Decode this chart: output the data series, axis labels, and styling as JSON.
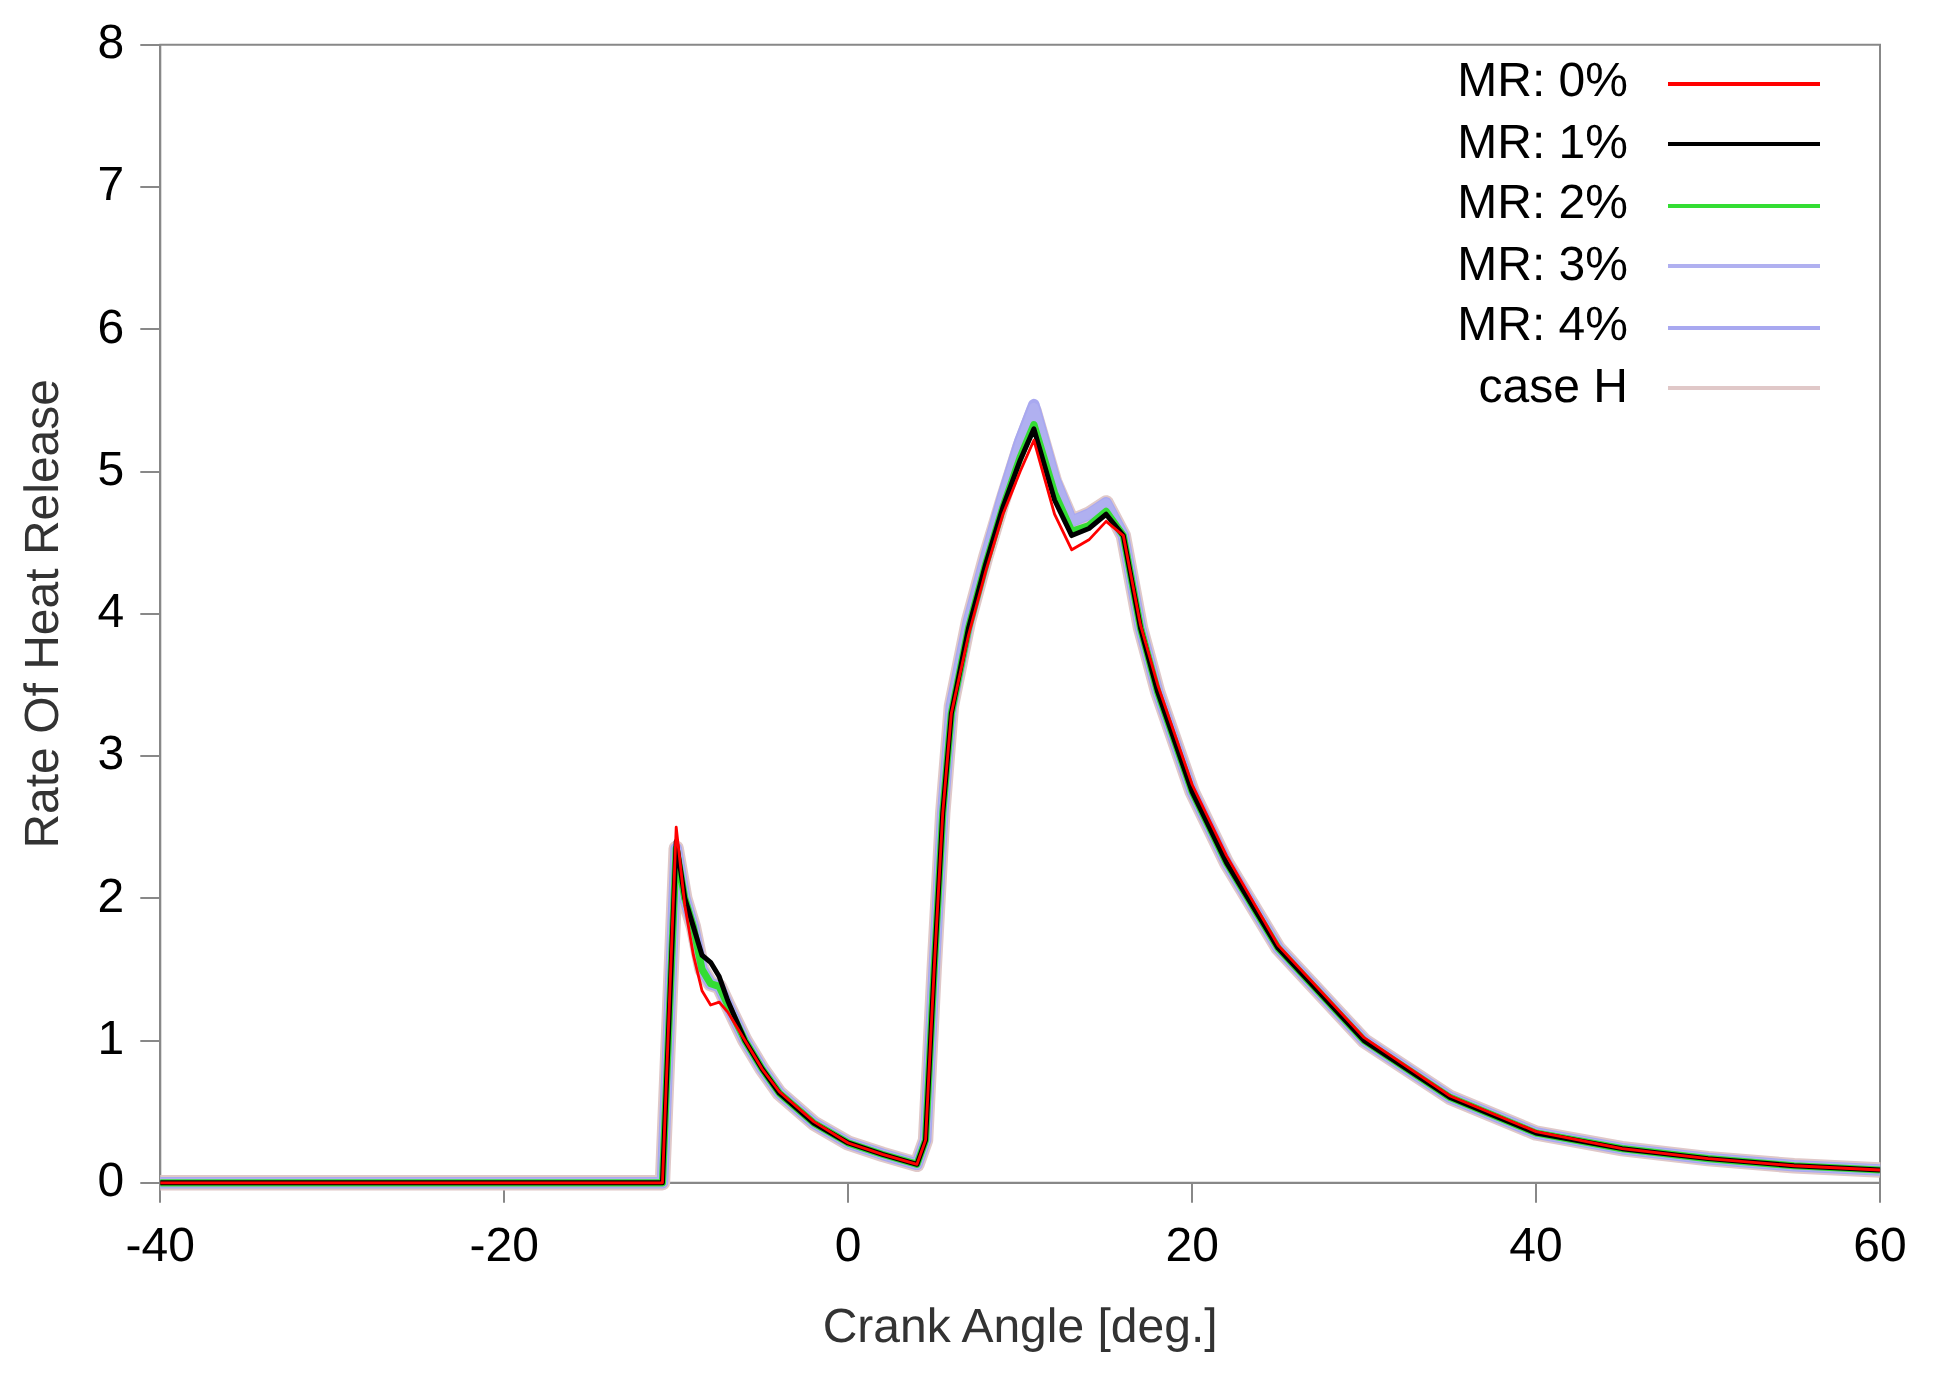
{
  "chart_data": {
    "type": "line",
    "xlabel": "Crank Angle [deg.]",
    "ylabel": "Rate Of Heat Release",
    "x": [
      -40,
      -10.8,
      -10,
      -9.5,
      -9,
      -8.5,
      -8,
      -7.5,
      -7,
      -6,
      -5,
      -4,
      -2,
      0,
      2,
      4,
      4.5,
      5,
      5.5,
      6,
      7,
      8,
      9,
      10,
      10.8,
      12,
      13,
      14,
      15,
      16,
      17,
      18,
      20,
      22,
      25,
      30,
      35,
      40,
      45,
      50,
      55,
      60
    ],
    "series": [
      {
        "name": "MR: 0%",
        "color": "#ff0000",
        "values": [
          0,
          0,
          2.5,
          1.95,
          1.6,
          1.35,
          1.25,
          1.27,
          1.2,
          1.0,
          0.8,
          0.64,
          0.43,
          0.28,
          0.2,
          0.13,
          0.3,
          1.5,
          2.6,
          3.3,
          3.85,
          4.3,
          4.7,
          5.0,
          5.22,
          4.7,
          4.45,
          4.52,
          4.65,
          4.55,
          3.92,
          3.5,
          2.8,
          2.3,
          1.67,
          1.02,
          0.61,
          0.36,
          0.24,
          0.17,
          0.12,
          0.09
        ]
      },
      {
        "name": "MR: 1%",
        "color": "#000000",
        "values": [
          0,
          0,
          2.4,
          2.0,
          1.8,
          1.6,
          1.55,
          1.45,
          1.28,
          1.0,
          0.8,
          0.63,
          0.42,
          0.28,
          0.2,
          0.13,
          0.3,
          1.5,
          2.6,
          3.3,
          3.9,
          4.35,
          4.75,
          5.08,
          5.3,
          4.8,
          4.55,
          4.6,
          4.7,
          4.55,
          3.9,
          3.45,
          2.75,
          2.25,
          1.65,
          1.0,
          0.6,
          0.35,
          0.24,
          0.17,
          0.12,
          0.09
        ]
      },
      {
        "name": "MR: 2%",
        "color": "#33dd33",
        "values": [
          0,
          0,
          2.35,
          2.0,
          1.8,
          1.5,
          1.4,
          1.38,
          1.25,
          1.0,
          0.8,
          0.63,
          0.42,
          0.28,
          0.2,
          0.13,
          0.3,
          1.5,
          2.6,
          3.3,
          3.9,
          4.35,
          4.75,
          5.1,
          5.33,
          4.85,
          4.58,
          4.62,
          4.72,
          4.55,
          3.9,
          3.45,
          2.75,
          2.25,
          1.65,
          1.0,
          0.6,
          0.35,
          0.24,
          0.17,
          0.12,
          0.09
        ]
      },
      {
        "name": "MR: 3%",
        "color": "#b0b0f0",
        "values": [
          0,
          0,
          2.35,
          2.0,
          1.8,
          1.5,
          1.4,
          1.38,
          1.25,
          1.0,
          0.8,
          0.63,
          0.42,
          0.28,
          0.2,
          0.13,
          0.3,
          1.5,
          2.6,
          3.35,
          3.95,
          4.4,
          4.82,
          5.2,
          5.45,
          4.95,
          4.65,
          4.7,
          4.78,
          4.55,
          3.9,
          3.45,
          2.75,
          2.25,
          1.65,
          1.0,
          0.6,
          0.35,
          0.24,
          0.17,
          0.12,
          0.09
        ]
      },
      {
        "name": "MR: 4%",
        "color": "#a8a8f0",
        "values": [
          0,
          0,
          2.35,
          2.0,
          1.8,
          1.5,
          1.4,
          1.38,
          1.25,
          1.0,
          0.8,
          0.63,
          0.42,
          0.28,
          0.2,
          0.13,
          0.3,
          1.5,
          2.6,
          3.35,
          3.95,
          4.4,
          4.83,
          5.22,
          5.47,
          4.95,
          4.65,
          4.7,
          4.78,
          4.55,
          3.9,
          3.45,
          2.75,
          2.25,
          1.65,
          1.0,
          0.6,
          0.35,
          0.24,
          0.17,
          0.12,
          0.09
        ]
      },
      {
        "name": "case H",
        "color": "#e0c8c8",
        "values": [
          0,
          0,
          2.35,
          2.0,
          1.8,
          1.5,
          1.4,
          1.38,
          1.25,
          1.0,
          0.8,
          0.63,
          0.42,
          0.28,
          0.2,
          0.13,
          0.3,
          1.5,
          2.6,
          3.35,
          3.95,
          4.4,
          4.8,
          5.18,
          5.43,
          4.93,
          4.65,
          4.7,
          4.78,
          4.55,
          3.9,
          3.45,
          2.75,
          2.25,
          1.65,
          1.0,
          0.6,
          0.35,
          0.24,
          0.17,
          0.12,
          0.09
        ]
      }
    ],
    "xlim": [
      -40,
      60
    ],
    "xticks": [
      -40,
      -20,
      0,
      20,
      40,
      60
    ],
    "ylim": [
      0,
      8
    ],
    "yticks": [
      0,
      1,
      2,
      3,
      4,
      5,
      6,
      7,
      8
    ],
    "grid": false,
    "legend": "top right",
    "marker": "none",
    "line_style": "solid"
  }
}
